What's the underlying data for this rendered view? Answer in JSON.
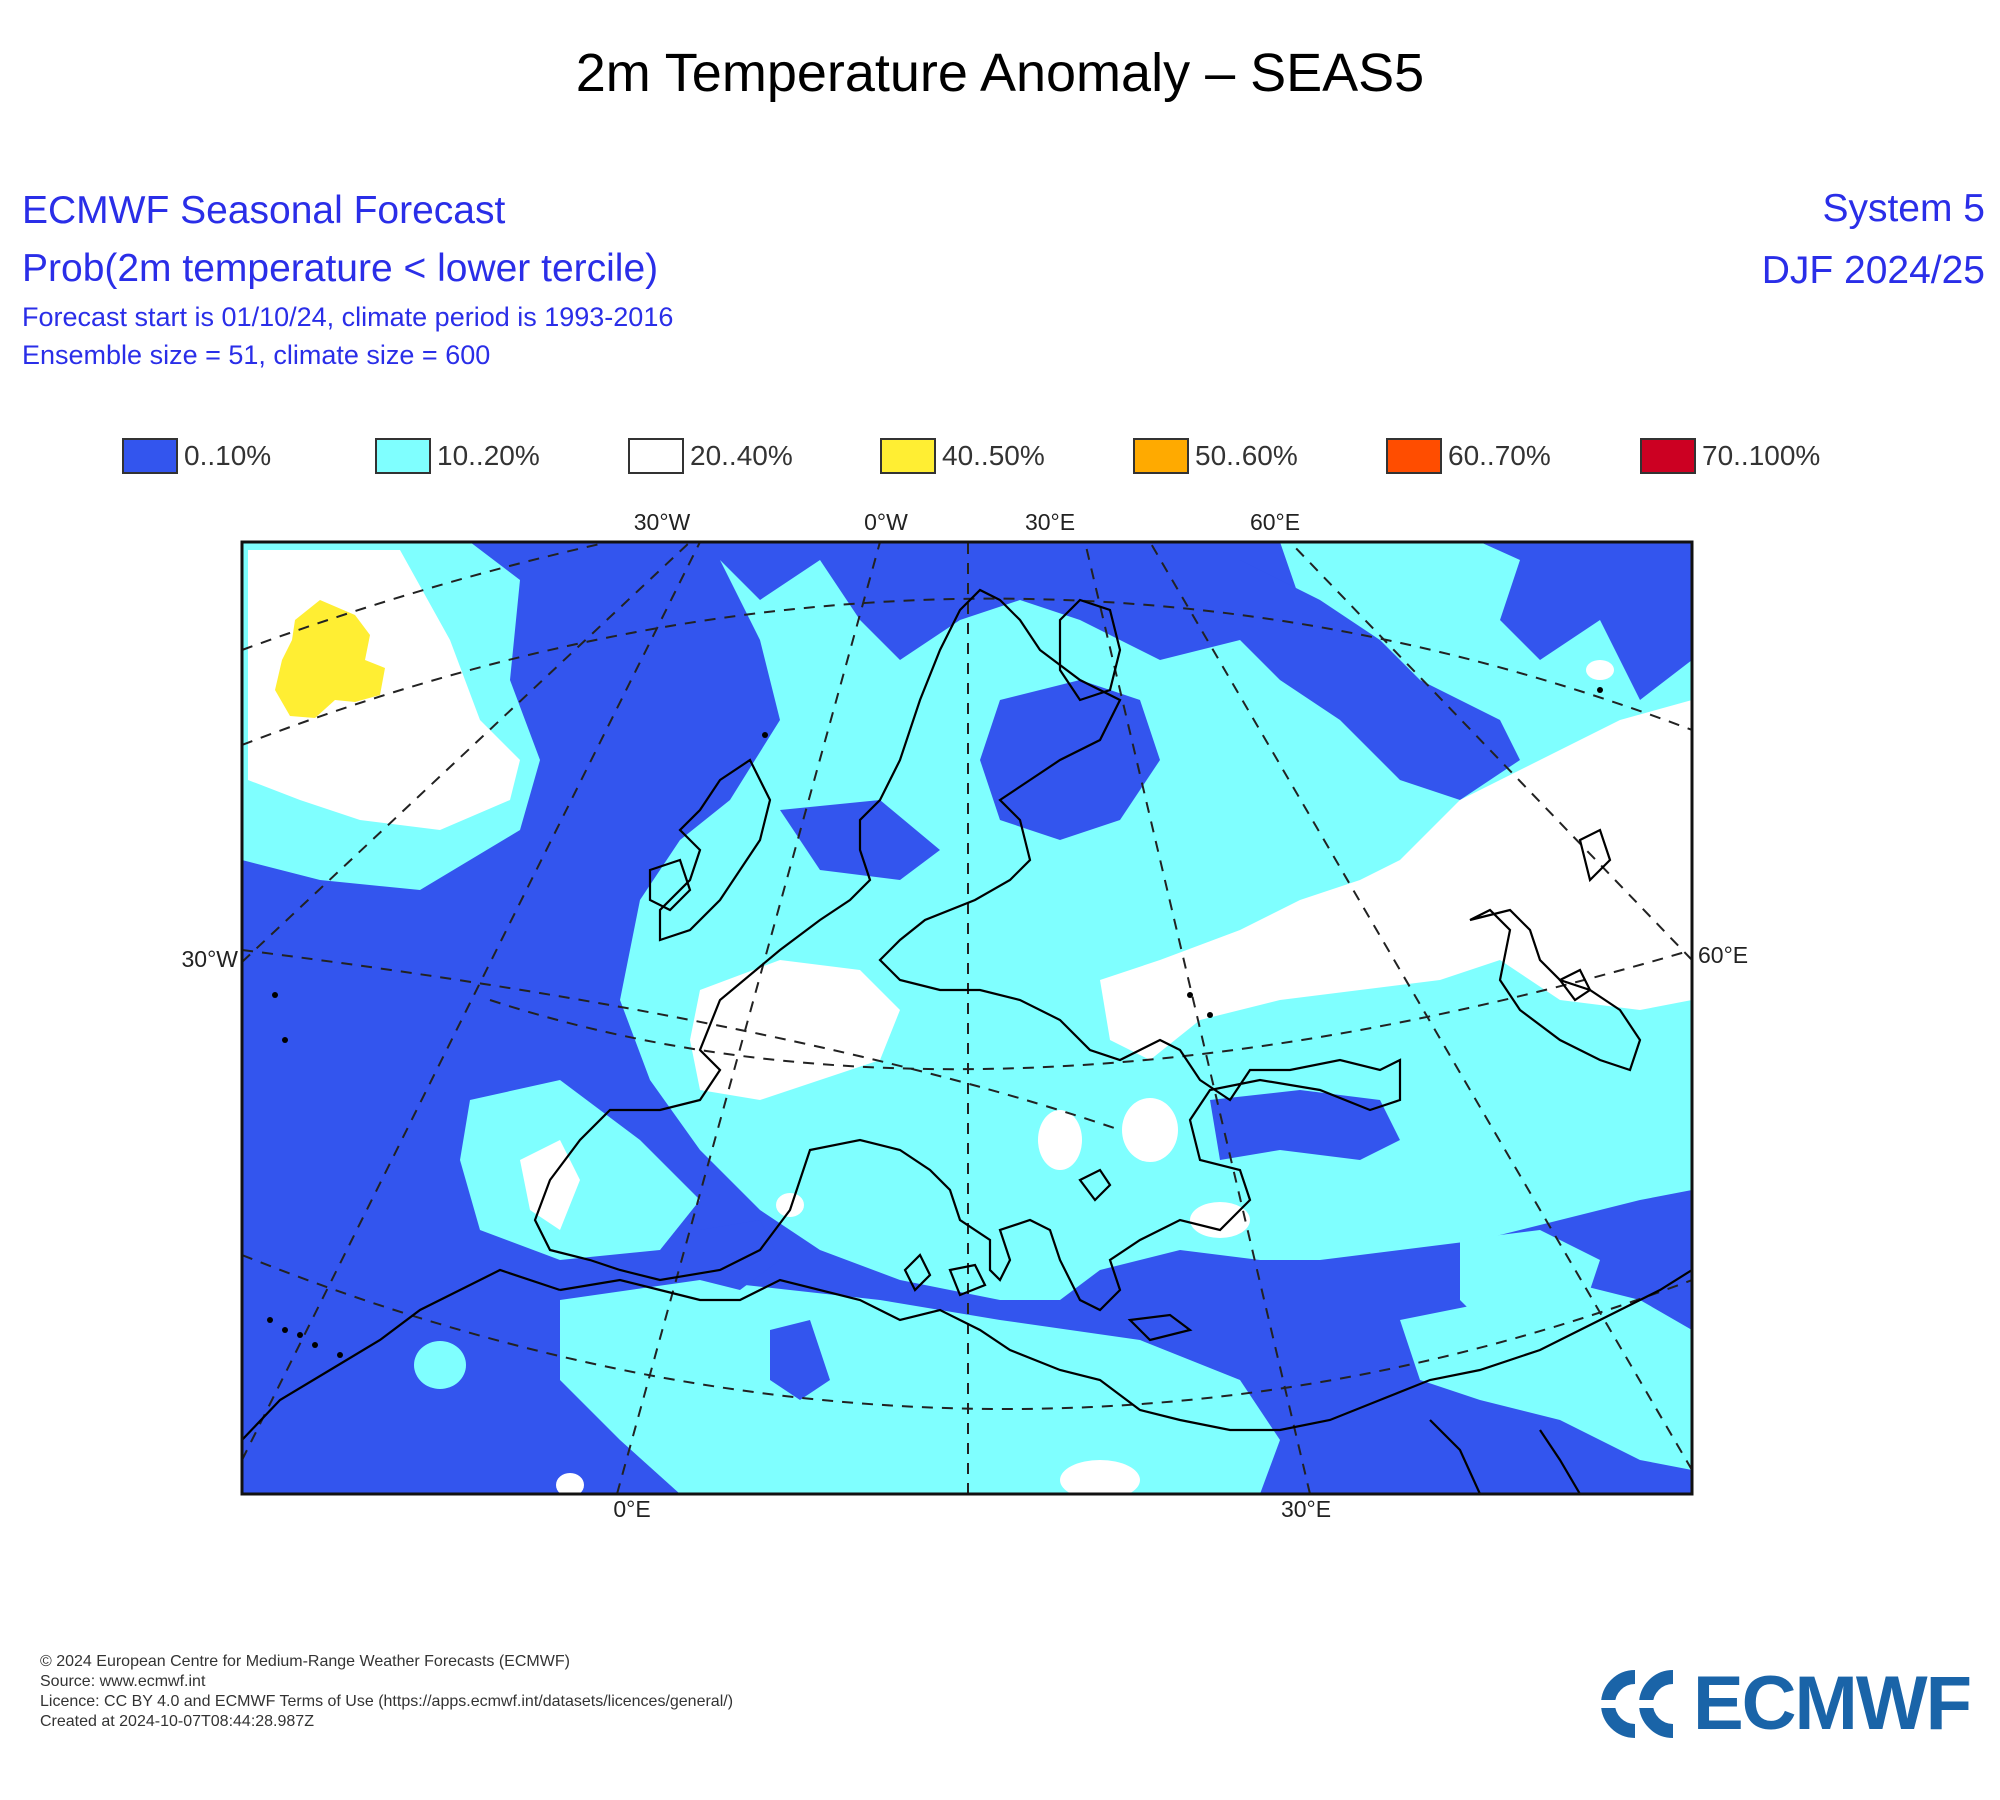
{
  "title": "2m Temperature Anomaly – SEAS5",
  "header": {
    "line1": "ECMWF Seasonal Forecast",
    "line2": "Prob(2m temperature < lower tercile)",
    "line3": "Forecast start is 01/10/24, climate period is 1993-2016",
    "line4": "Ensemble size = 51, climate size = 600",
    "system": "System 5",
    "season": "DJF 2024/25"
  },
  "legend": [
    {
      "label": "0..10%",
      "color": "#3355ee"
    },
    {
      "label": "10..20%",
      "color": "#7fffff"
    },
    {
      "label": "20..40%",
      "color": "#ffffff"
    },
    {
      "label": "40..50%",
      "color": "#ffee33"
    },
    {
      "label": "50..60%",
      "color": "#ffaa00"
    },
    {
      "label": "60..70%",
      "color": "#ff4d00"
    },
    {
      "label": "70..100%",
      "color": "#cc0022"
    }
  ],
  "grid_labels": {
    "top": [
      "30°W",
      "0°W",
      "30°E",
      "60°E"
    ],
    "left": "30°W",
    "right": "60°E",
    "bottom": [
      "0°E",
      "30°E"
    ]
  },
  "footer": {
    "copyright": "© 2024 European Centre for Medium-Range Weather Forecasts (ECMWF)",
    "source": "Source: www.ecmwf.int",
    "licence": "Licence: CC BY 4.0 and ECMWF Terms of Use (https://apps.ecmwf.int/datasets/licences/general/)",
    "created": "Created at 2024-10-07T08:44:28.987Z"
  },
  "logo": {
    "text": "ECMWF",
    "color": "#1a64a8"
  }
}
